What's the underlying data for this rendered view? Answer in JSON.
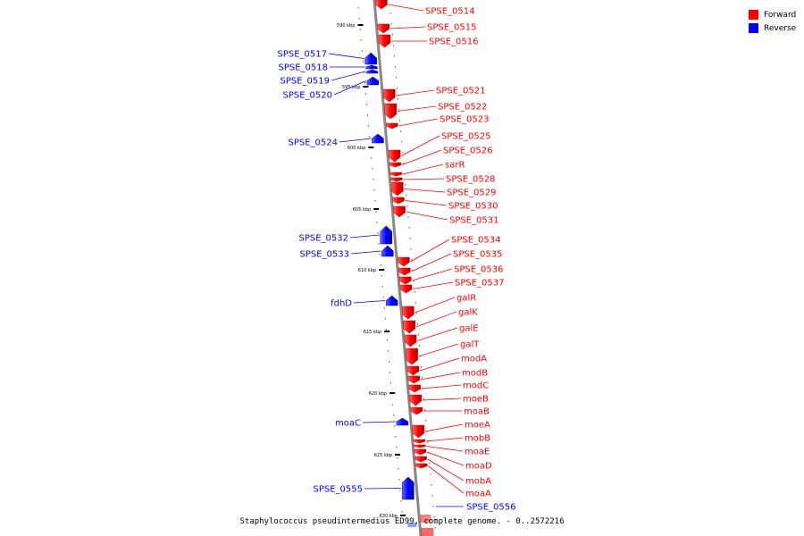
{
  "title": "Staphylococcus pseudintermedius ED99, complete genome. - 0..2572216",
  "legend": [
    {
      "label": "Forward",
      "color": "#ff0000"
    },
    {
      "label": "Reverse",
      "color": "#0000ff"
    }
  ],
  "colors": {
    "forward": "#ff0000",
    "reverse": "#0000ff",
    "backbone": "#888888"
  },
  "ticks": [
    "590 kbp",
    "595 kbp",
    "600 kbp",
    "605 kbp",
    "610 kbp",
    "615 kbp",
    "620 kbp",
    "625 kbp",
    "630 kbp"
  ],
  "forward_genes": [
    "SPSE_0514",
    "SPSE_0515",
    "SPSE_0516",
    "SPSE_0521",
    "SPSE_0522",
    "SPSE_0523",
    "SPSE_0525",
    "SPSE_0526",
    "sarR",
    "SPSE_0528",
    "SPSE_0529",
    "SPSE_0530",
    "SPSE_0531",
    "SPSE_0534",
    "SPSE_0535",
    "SPSE_0536",
    "SPSE_0537",
    "galR",
    "galK",
    "galE",
    "galT",
    "modA",
    "modB",
    "modC",
    "moeB",
    "moaB",
    "moeA",
    "mobB",
    "moaE",
    "moaD",
    "mobA",
    "moaA"
  ],
  "reverse_genes": [
    "SPSE_0517",
    "SPSE_0518",
    "SPSE_0519",
    "SPSE_0520",
    "SPSE_0524",
    "SPSE_0532",
    "SPSE_0533",
    "fdhD",
    "moaC",
    "SPSE_0555",
    "SPSE_0556"
  ]
}
